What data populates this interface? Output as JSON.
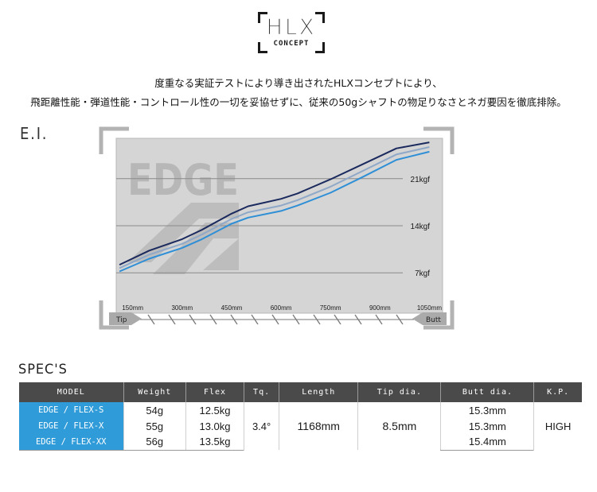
{
  "logo": {
    "mark": "HLX",
    "sub": "CONCEPT"
  },
  "intro": {
    "line1": "度重なる実証テストにより導き出されたHLXコンセプトにより、",
    "line2": "飛距離性能・弾道性能・コントロール性の一切を妥協せずに、従来の50gシャフトの物足りなさとネガ要因を徹底排除。"
  },
  "ei_section": {
    "title": "E.I."
  },
  "chart_data": {
    "type": "line",
    "watermark": "EDGE",
    "x_unit_suffix": "mm",
    "x_ticks": [
      150,
      300,
      450,
      600,
      750,
      900,
      1050
    ],
    "x_tick_labels": [
      "150mm",
      "300mm",
      "450mm",
      "600mm",
      "750mm",
      "900mm",
      "1050mm"
    ],
    "xlim": [
      100,
      1090
    ],
    "y_ticks": [
      7,
      14,
      21
    ],
    "y_tick_labels": [
      "7kgf",
      "14kgf",
      "21kgf"
    ],
    "ylim": [
      1,
      27
    ],
    "left_end_label": "Tip",
    "right_end_label": "Butt",
    "grid": "horizontal",
    "series": [
      {
        "color": "#1b2a5e",
        "x": [
          110,
          200,
          300,
          360,
          450,
          500,
          600,
          650,
          750,
          850,
          950,
          1050
        ],
        "y": [
          8.2,
          10.3,
          12.0,
          13.4,
          15.8,
          16.9,
          18.0,
          18.8,
          20.9,
          23.2,
          25.5,
          26.4
        ]
      },
      {
        "color": "#8fa8c8",
        "x": [
          110,
          200,
          300,
          360,
          450,
          500,
          600,
          650,
          750,
          850,
          950,
          1050
        ],
        "y": [
          7.7,
          9.7,
          11.3,
          12.7,
          15.0,
          16.0,
          17.0,
          17.8,
          19.8,
          22.2,
          24.6,
          25.7
        ]
      },
      {
        "color": "#2e8fd6",
        "x": [
          110,
          200,
          300,
          360,
          450,
          500,
          600,
          650,
          750,
          850,
          950,
          1050
        ],
        "y": [
          7.2,
          9.1,
          10.7,
          12.0,
          14.3,
          15.2,
          16.2,
          17.0,
          18.9,
          21.3,
          23.8,
          25.0
        ]
      }
    ]
  },
  "spec_section": {
    "title": "SPEC'S"
  },
  "spec_table": {
    "headers": [
      "MODEL",
      "Weight",
      "Flex",
      "Tq.",
      "Length",
      "Tip dia.",
      "Butt dia.",
      "K.P."
    ],
    "rows": [
      {
        "model": "EDGE / FLEX-S",
        "weight": "54g",
        "flex": "12.5kg",
        "butt": "15.3mm"
      },
      {
        "model": "EDGE / FLEX-X",
        "weight": "55g",
        "flex": "13.0kg",
        "butt": "15.3mm"
      },
      {
        "model": "EDGE / FLEX-XX",
        "weight": "56g",
        "flex": "13.5kg",
        "butt": "15.4mm"
      }
    ],
    "shared": {
      "tq": "3.4°",
      "length": "1168mm",
      "tip": "8.5mm",
      "kp": "HIGH"
    }
  }
}
